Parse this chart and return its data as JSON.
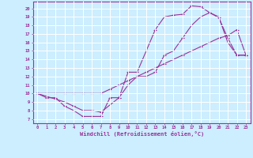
{
  "xlabel": "Windchill (Refroidissement éolien,°C)",
  "bg_color": "#cceeff",
  "grid_color": "#ffffff",
  "line_color": "#993399",
  "xlim": [
    -0.5,
    23.5
  ],
  "ylim": [
    6.5,
    20.8
  ],
  "xticks": [
    0,
    1,
    2,
    3,
    4,
    5,
    6,
    7,
    8,
    9,
    10,
    11,
    12,
    13,
    14,
    15,
    16,
    17,
    18,
    19,
    20,
    21,
    22,
    23
  ],
  "yticks": [
    7,
    8,
    9,
    10,
    11,
    12,
    13,
    14,
    15,
    16,
    17,
    18,
    19,
    20
  ],
  "curve1_x": [
    0,
    1,
    2,
    3,
    4,
    5,
    6,
    7,
    8,
    9,
    10,
    11,
    12,
    13,
    14,
    15,
    16,
    17,
    18,
    19,
    20,
    21,
    22,
    23
  ],
  "curve1_y": [
    10,
    9.5,
    9.5,
    8.5,
    8.0,
    7.3,
    7.3,
    7.3,
    9.5,
    9.5,
    12.5,
    12.5,
    15.0,
    17.5,
    19.0,
    19.2,
    19.3,
    20.3,
    20.2,
    19.5,
    18.9,
    16.5,
    14.5,
    14.5
  ],
  "curve2_x": [
    0,
    3,
    4,
    5,
    6,
    7,
    9,
    10,
    11,
    12,
    13,
    14,
    15,
    16,
    17,
    18,
    19,
    20,
    21,
    22,
    23
  ],
  "curve2_y": [
    10,
    9.0,
    8.5,
    8.0,
    8.0,
    7.8,
    9.5,
    11.0,
    12.0,
    12.0,
    12.5,
    14.5,
    15.0,
    16.5,
    18.0,
    19.0,
    19.5,
    19.0,
    16.0,
    14.5,
    14.5
  ],
  "curve3_x": [
    0,
    1,
    2,
    3,
    4,
    5,
    6,
    7,
    8,
    9,
    10,
    11,
    12,
    13,
    14,
    15,
    16,
    17,
    18,
    19,
    20,
    21,
    22,
    23
  ],
  "curve3_y": [
    10,
    10,
    10,
    10,
    10,
    10,
    10,
    10,
    10.5,
    11,
    11.5,
    12,
    12.5,
    13,
    13.5,
    14,
    14.5,
    15,
    15.5,
    16,
    16.5,
    16.8,
    17.5,
    14.5
  ]
}
